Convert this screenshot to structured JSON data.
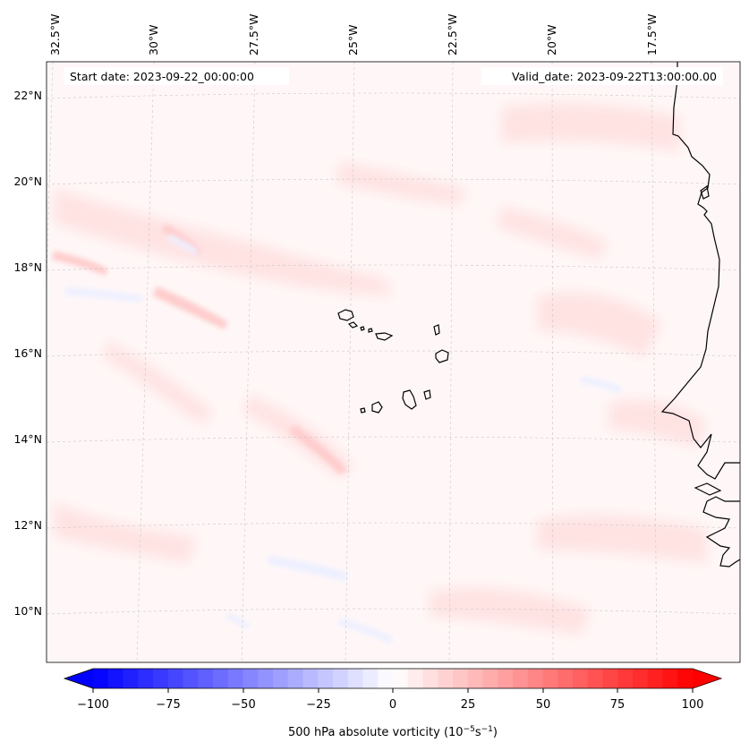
{
  "map": {
    "variable": "500 hPa absolute vorticity",
    "colormap": "bwr",
    "projection": "lambert-conformal",
    "lon_labels": [
      "32.5°W",
      "30°W",
      "27.5°W",
      "25°W",
      "22.5°W",
      "20°W",
      "17.5°W"
    ],
    "lat_labels": [
      "22°N",
      "20°N",
      "18°N",
      "16°N",
      "14°N",
      "12°N",
      "10°N"
    ],
    "gridlines": true,
    "coastlines": [
      "Cabo Verde islands",
      "West African coast (Mauritania, Senegal, The Gambia, Guinea-Bissau)"
    ]
  },
  "annotations": {
    "start_date": "Start date: 2023-09-22_00:00:00",
    "valid_date": "Valid_date: 2023-09-22T13:00:00.00"
  },
  "colorbar": {
    "label_prefix": "500 hPa absolute vorticity (10",
    "exp1": "−5",
    "label_mid": "s",
    "exp2": "−1",
    "label_suffix": ")",
    "ticks": [
      "−100",
      "−75",
      "−50",
      "−25",
      "0",
      "25",
      "50",
      "75",
      "100"
    ],
    "min": -100,
    "max": 100,
    "colors": {
      "low": "#0000ff",
      "mid": "#ffffff",
      "high": "#ff0000"
    },
    "extend": "both"
  }
}
